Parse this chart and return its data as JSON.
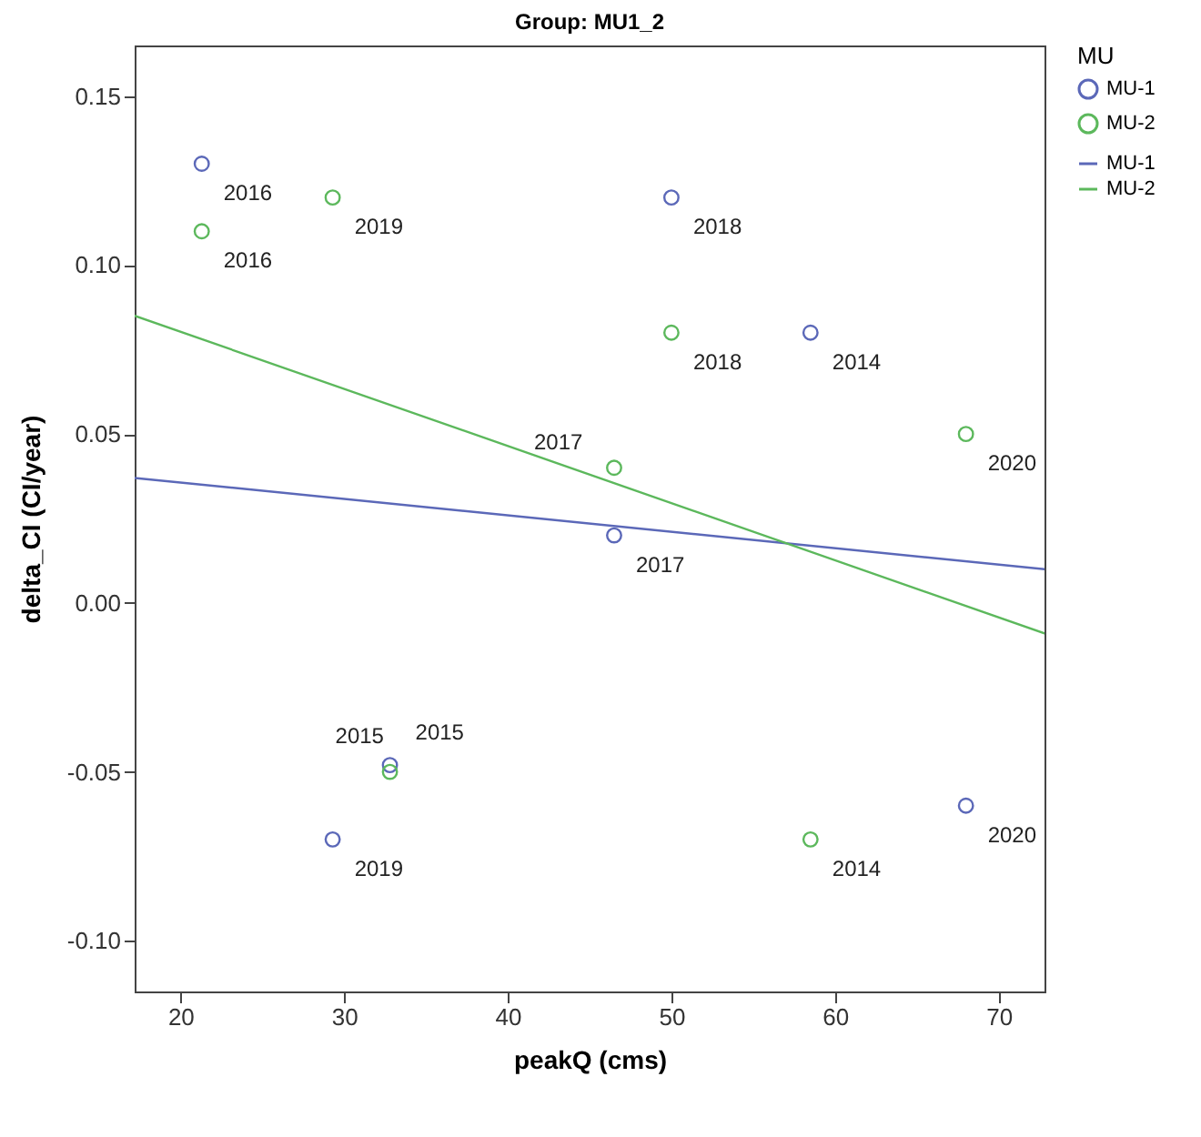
{
  "chart_data": {
    "type": "scatter",
    "title": "Group: MU1_2",
    "xlabel": "peakQ (cms)",
    "ylabel": "delta_CI (CI/year)",
    "legend_title": "MU",
    "legend": "right",
    "marker": "circle",
    "grid": false,
    "xlim": [
      17.2,
      72.8
    ],
    "xticks": [
      20,
      30,
      40,
      50,
      60,
      70
    ],
    "ylim": [
      -0.115,
      0.165
    ],
    "yticks": [
      {
        "value": -0.1,
        "label": "-0.10"
      },
      {
        "value": -0.05,
        "label": "-0.05"
      },
      {
        "value": 0,
        "label": "0.00"
      },
      {
        "value": 0.05,
        "label": "0.05"
      },
      {
        "value": 0.1,
        "label": "0.10"
      },
      {
        "value": 0.15,
        "label": "0.15"
      }
    ],
    "series": [
      {
        "name": "MU-1",
        "color": "#5b68b8",
        "x": [
          21.3,
          50,
          58.5,
          46.5,
          29.3,
          68,
          32.8
        ],
        "values": [
          0.13,
          0.12,
          0.08,
          0.02,
          -0.07,
          -0.06,
          -0.048
        ]
      },
      {
        "name": "MU-2",
        "color": "#5cb85c",
        "x": [
          21.3,
          29.3,
          50,
          46.5,
          68,
          32.8,
          58.5
        ],
        "values": [
          0.11,
          0.12,
          0.08,
          0.04,
          0.05,
          -0.05,
          -0.07
        ]
      },
      {
        "name": "MU-1",
        "type": "line",
        "marker": "none",
        "color": "#5b68b8",
        "x": [
          17.2,
          72.8
        ],
        "values": [
          0.037,
          0.01
        ]
      },
      {
        "name": "MU-2",
        "type": "line",
        "marker": "none",
        "color": "#5cb85c",
        "x": [
          17.2,
          72.8
        ],
        "values": [
          0.085,
          -0.009
        ]
      }
    ],
    "annotations": [
      {
        "text": "2016",
        "x": 21.3,
        "y": 0.13
      },
      {
        "text": "2018",
        "x": 50,
        "y": 0.12
      },
      {
        "text": "2014",
        "x": 58.5,
        "y": 0.08
      },
      {
        "text": "2017",
        "x": 46.5,
        "y": 0.02
      },
      {
        "text": "2019",
        "x": 29.3,
        "y": -0.07
      },
      {
        "text": "2020",
        "x": 68,
        "y": -0.06
      },
      {
        "text": "2015",
        "x": 32.8,
        "y": -0.048
      },
      {
        "text": "2016",
        "x": 21.3,
        "y": 0.11
      },
      {
        "text": "2019",
        "x": 29.3,
        "y": 0.12
      },
      {
        "text": "2018",
        "x": 50,
        "y": 0.08
      },
      {
        "text": "2017",
        "x": 46.5,
        "y": 0.04
      },
      {
        "text": "2020",
        "x": 68,
        "y": 0.05
      },
      {
        "text": "2015",
        "x": 32.8,
        "y": -0.05
      },
      {
        "text": "2014",
        "x": 58.5,
        "y": -0.07
      }
    ]
  }
}
